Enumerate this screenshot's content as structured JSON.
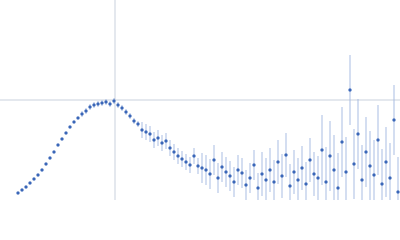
{
  "chart_data": {
    "type": "scatter",
    "x": [
      18,
      22,
      26,
      30,
      34,
      38,
      42,
      46,
      50,
      54,
      58,
      62,
      66,
      70,
      74,
      78,
      82,
      86,
      90,
      94,
      98,
      102,
      106,
      110,
      114,
      118,
      122,
      126,
      130,
      134,
      138,
      142,
      146,
      150,
      154,
      158,
      162,
      166,
      170,
      174,
      178,
      182,
      186,
      190,
      194,
      198,
      202,
      206,
      210,
      214,
      218,
      222,
      226,
      230,
      234,
      238,
      242,
      246,
      250,
      254,
      258,
      262,
      266,
      270,
      274,
      278,
      282,
      286,
      290,
      294,
      298,
      302,
      306,
      310,
      314,
      318,
      322,
      326,
      330,
      334,
      338,
      342,
      346,
      350,
      354,
      358,
      362,
      366,
      370,
      374,
      378,
      382,
      386,
      390,
      394,
      398
    ],
    "values": [
      7,
      10,
      13,
      17,
      21,
      25,
      30,
      36,
      42,
      48,
      55,
      61,
      67,
      73,
      78,
      82,
      86,
      89,
      93,
      95,
      96,
      97,
      98,
      96,
      99,
      95,
      92,
      88,
      84,
      79,
      76,
      70,
      68,
      66,
      60,
      62,
      57,
      59,
      52,
      48,
      44,
      41,
      38,
      35,
      44,
      34,
      32,
      30,
      26,
      40,
      22,
      33,
      28,
      24,
      18,
      30,
      27,
      15,
      22,
      35,
      12,
      26,
      20,
      30,
      18,
      38,
      24,
      45,
      14,
      28,
      20,
      32,
      16,
      40,
      26,
      22,
      50,
      18,
      44,
      30,
      12,
      58,
      28,
      110,
      36,
      66,
      20,
      48,
      34,
      25,
      60,
      16,
      38,
      22,
      80,
      8
    ],
    "errors": [
      1,
      1,
      1,
      1,
      1,
      1,
      1,
      1,
      1,
      1,
      1,
      1,
      1,
      1,
      1,
      1,
      3,
      3,
      3,
      3,
      3,
      3,
      3,
      3,
      3,
      3,
      3,
      3,
      3,
      3,
      3,
      8,
      8,
      8,
      8,
      8,
      8,
      8,
      8,
      8,
      8,
      8,
      8,
      8,
      8,
      8,
      15,
      15,
      15,
      15,
      15,
      15,
      15,
      15,
      15,
      15,
      15,
      15,
      15,
      15,
      15,
      22,
      22,
      22,
      22,
      22,
      22,
      22,
      22,
      22,
      22,
      22,
      22,
      22,
      22,
      22,
      35,
      35,
      35,
      35,
      35,
      35,
      35,
      35,
      35,
      35,
      35,
      35,
      35,
      35,
      35,
      35,
      35,
      35,
      35,
      35
    ],
    "color": "#3a66b8",
    "error_color": "#a9bde3",
    "xlim": [
      0,
      400
    ],
    "ylim": [
      0,
      200
    ],
    "reference_lines": {
      "x": 115,
      "y": 100,
      "color": "#c8d0dc"
    }
  }
}
